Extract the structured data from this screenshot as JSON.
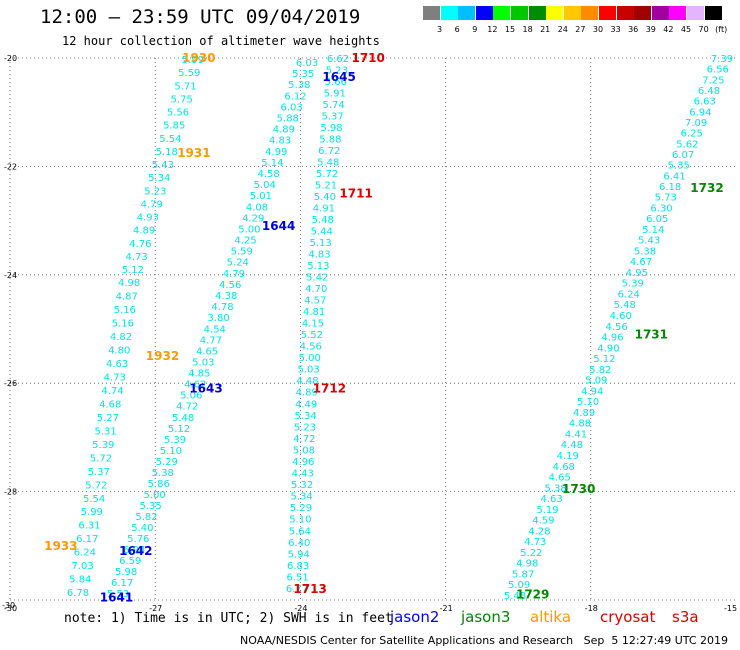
{
  "header": {
    "title": "12:00 – 23:59 UTC 09/04/2019",
    "subtitle": "12 hour collection of altimeter wave heights"
  },
  "colorbar": {
    "colors": [
      "#7f7f7f",
      "#00ffff",
      "#00bfff",
      "#0000ff",
      "#00ff00",
      "#00c800",
      "#008c00",
      "#ffff00",
      "#ffc800",
      "#ff8c00",
      "#ff0000",
      "#c80000",
      "#a00000",
      "#a000a0",
      "#ff00ff",
      "#e6b4ff",
      "#000000"
    ],
    "labels": [
      "3",
      "6",
      "9",
      "12",
      "15",
      "18",
      "21",
      "24",
      "27",
      "30",
      "33",
      "36",
      "39",
      "42",
      "45",
      "70",
      "(ft)"
    ]
  },
  "map": {
    "lat_ticks": [
      "-20",
      "-22",
      "-24",
      "-26",
      "-28",
      "-30"
    ],
    "lon_ticks": [
      "-30",
      "-27",
      "-24",
      "-21",
      "-18",
      "-15"
    ],
    "value_color": "#00e5e5",
    "tracks": [
      {
        "id": "t1",
        "values": [
          "5.99",
          "5.59",
          "5.71",
          "5.75",
          "5.56",
          "5.85",
          "5.54",
          "5.18",
          "5.43",
          "5.34",
          "5.23",
          "4.79",
          "4.93",
          "4.89",
          "4.76",
          "4.73",
          "5.12",
          "4.98",
          "4.87",
          "5.16",
          "5.16",
          "4.82",
          "4.80",
          "4.63",
          "4.73",
          "4.74",
          "4.68",
          "5.27",
          "5.31",
          "5.39",
          "5.72",
          "5.37",
          "5.72",
          "5.54",
          "5.99",
          "6.31",
          "6.17",
          "6.24",
          "7.03",
          "5.84",
          "6.78"
        ]
      },
      {
        "id": "t2",
        "values": [
          "6.03",
          "5.35",
          "5.38",
          "6.12",
          "6.03",
          "5.88",
          "4.89",
          "4.83",
          "4.99",
          "5.14",
          "4.58",
          "5.04",
          "5.01",
          "4.08",
          "4.29",
          "5.00",
          "4.25",
          "5.59",
          "5.24",
          "4.79",
          "4.56",
          "4.38",
          "4.78",
          "3.80",
          "4.54",
          "4.77",
          "4.65",
          "5.03",
          "4.85",
          "4.62",
          "5.06",
          "4.72",
          "5.48",
          "5.12",
          "5.39",
          "5.10",
          "5.29",
          "5.38",
          "5.86",
          "5.00",
          "5.35",
          "5.82",
          "5.40",
          "5.76",
          "6.94",
          "6.59",
          "5.98",
          "6.17",
          "5.53"
        ]
      },
      {
        "id": "t3",
        "values": [
          "6.62",
          "5.23",
          "5.66",
          "5.91",
          "5.74",
          "5.37",
          "5.98",
          "5.88",
          "6.72",
          "5.48",
          "5.72",
          "5.21",
          "5.40",
          "4.91",
          "5.48",
          "5.44",
          "5.13",
          "4.83",
          "5.13",
          "5.42",
          "4.70",
          "4.57",
          "4.81",
          "4.15",
          "5.52",
          "4.56",
          "5.00",
          "5.03",
          "4.48",
          "4.89",
          "4.49",
          "5.34",
          "5.23",
          "4.72",
          "5.08",
          "4.96",
          "4.43",
          "5.32",
          "5.34",
          "5.29",
          "5.10",
          "5.64",
          "6.40",
          "5.94",
          "6.83",
          "6.51",
          "6.77"
        ]
      },
      {
        "id": "t4",
        "values": [
          "7.39",
          "6.56",
          "7.25",
          "6.48",
          "6.63",
          "6.94",
          "7.09",
          "6.25",
          "5.62",
          "6.07",
          "5.35",
          "6.41",
          "6.18",
          "5.73",
          "6.30",
          "6.05",
          "5.14",
          "5.43",
          "5.38",
          "4.67",
          "4.95",
          "5.39",
          "6.24",
          "5.48",
          "4.60",
          "4.56",
          "4.96",
          "4.90",
          "5.12",
          "5.82",
          "5.09",
          "4.94",
          "5.10",
          "4.89",
          "4.88",
          "4.41",
          "4.48",
          "4.19",
          "4.68",
          "4.65",
          "5.38",
          "4.63",
          "5.19",
          "4.59",
          "4.28",
          "4.73",
          "5.22",
          "4.98",
          "5.87",
          "5.09",
          "5.48"
        ]
      }
    ],
    "pass_labels": [
      {
        "text": "1930",
        "color": "#ff9900",
        "lon": -26.1,
        "lat": -20.0
      },
      {
        "text": "1931",
        "color": "#ff9900",
        "lon": -26.2,
        "lat": -21.75
      },
      {
        "text": "1932",
        "color": "#ff9900",
        "lon": -26.85,
        "lat": -25.5
      },
      {
        "text": "1933",
        "color": "#ff9900",
        "lon": -28.95,
        "lat": -29.0
      },
      {
        "text": "1710",
        "color": "#dd0000",
        "lon": -22.6,
        "lat": -20.0
      },
      {
        "text": "1711",
        "color": "#dd0000",
        "lon": -22.85,
        "lat": -22.5
      },
      {
        "text": "1712",
        "color": "#dd0000",
        "lon": -23.4,
        "lat": -26.1
      },
      {
        "text": "1713",
        "color": "#dd0000",
        "lon": -23.8,
        "lat": -29.8
      },
      {
        "text": "1645",
        "color": "#0000dd",
        "lon": -23.2,
        "lat": -20.35
      },
      {
        "text": "1644",
        "color": "#0000dd",
        "lon": -24.45,
        "lat": -23.1
      },
      {
        "text": "1643",
        "color": "#0000dd",
        "lon": -25.95,
        "lat": -26.1
      },
      {
        "text": "1642",
        "color": "#0000dd",
        "lon": -27.4,
        "lat": -29.1
      },
      {
        "text": "1641",
        "color": "#0000dd",
        "lon": -27.8,
        "lat": -29.95
      },
      {
        "text": "1732",
        "color": "#008800",
        "lon": -15.6,
        "lat": -22.4
      },
      {
        "text": "1731",
        "color": "#008800",
        "lon": -16.75,
        "lat": -25.1
      },
      {
        "text": "1730",
        "color": "#008800",
        "lon": -18.25,
        "lat": -27.95
      },
      {
        "text": "1729",
        "color": "#008800",
        "lon": -19.2,
        "lat": -29.9
      }
    ]
  },
  "note": "note: 1) Time is in UTC; 2) SWH is in feet",
  "legend": [
    {
      "name": "jason2",
      "color": "#0000ff"
    },
    {
      "name": "jason3",
      "color": "#008800"
    },
    {
      "name": "altika",
      "color": "#ff9900"
    },
    {
      "name": "cryosat",
      "color": "#dd0000"
    },
    {
      "name": "s3a",
      "color": "#dd0000"
    }
  ],
  "footer": "NOAA/NESDIS Center for Satellite Applications and Research   Sep  5 12:27:49 UTC 2019"
}
